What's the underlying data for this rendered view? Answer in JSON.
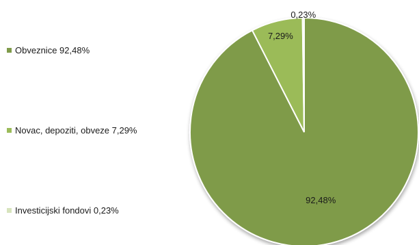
{
  "chart_data": {
    "type": "pie",
    "title": "",
    "legend_position": "left",
    "slices": [
      {
        "label": "Obveznice",
        "value": 92.48,
        "value_label": "92,48%",
        "legend_label": "Obveznice 92,48%",
        "color": "#7F9B4A"
      },
      {
        "label": "Novac, depoziti, obveze",
        "value": 7.29,
        "value_label": "7,29%",
        "legend_label": "Novac, depoziti, obveze 7,29%",
        "color": "#9BBB59"
      },
      {
        "label": "Investicijski fondovi",
        "value": 0.23,
        "value_label": "0,23%",
        "legend_label": "Investicijski fondovi 0,23%",
        "color": "#D7E4BD"
      }
    ]
  }
}
